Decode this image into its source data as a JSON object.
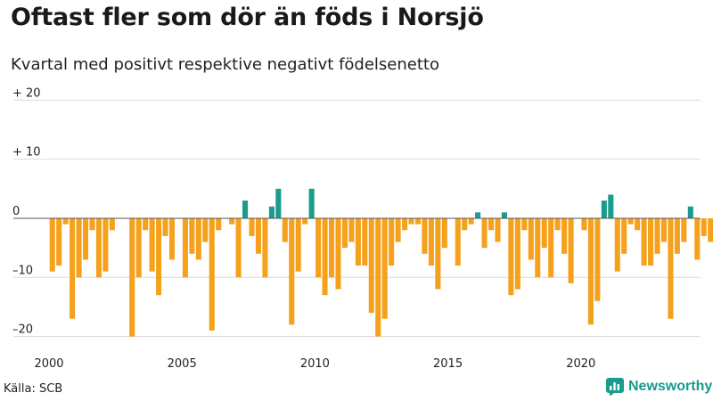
{
  "title": "Oftast fler som dör än föds i Norsjö",
  "subtitle": "Kvartal med positivt respektive negativt födelsenetto",
  "source": "Källa: SCB",
  "brand": {
    "name": "Newsworthy",
    "icon": "newsworthy-logo-icon"
  },
  "colors": {
    "positive": "#1a9b8b",
    "negative": "#f5a11c",
    "grid": "#d9d9d9",
    "zero": "#555555"
  },
  "chart_data": {
    "type": "bar",
    "title": "Oftast fler som dör än föds i Norsjö",
    "subtitle": "Kvartal med positivt respektive negativt födelsenetto",
    "xlabel": "",
    "ylabel": "",
    "ylim": [
      -21,
      20
    ],
    "xlim": [
      2000,
      2024.5
    ],
    "y_ticks": [
      20,
      10,
      0,
      -10,
      -20
    ],
    "y_tick_labels": [
      "+ 20",
      "+ 10",
      "0",
      "–10",
      "–20"
    ],
    "x_ticks": [
      2000,
      2005,
      2010,
      2015,
      2020
    ],
    "x_tick_labels": [
      "2000",
      "2005",
      "2010",
      "2015",
      "2020"
    ],
    "start_year": 2000,
    "period": "quarter",
    "values": [
      -9,
      -8,
      -1,
      -17,
      -10,
      -7,
      -2,
      -10,
      -9,
      -2,
      0,
      0,
      -20,
      -10,
      -2,
      -9,
      -13,
      -3,
      -7,
      0,
      -10,
      -6,
      -7,
      -4,
      -19,
      -2,
      0,
      -1,
      -10,
      3,
      -3,
      -6,
      -10,
      2,
      5,
      -4,
      -18,
      -9,
      -1,
      5,
      -10,
      -13,
      -10,
      -12,
      -5,
      -4,
      -8,
      -8,
      -16,
      -20,
      -17,
      -8,
      -4,
      -2,
      -1,
      -1,
      -6,
      -8,
      -12,
      -5,
      0,
      -8,
      -2,
      -1,
      1,
      -5,
      -2,
      -4,
      1,
      -13,
      -12,
      -2,
      -7,
      -10,
      -5,
      -10,
      -2,
      -6,
      -11,
      0,
      -2,
      -18,
      -14,
      3,
      4,
      -9,
      -6,
      -1,
      -2,
      -8,
      -8,
      -6,
      -4,
      -17,
      -6,
      -4,
      2,
      -7,
      -3,
      -4
    ]
  }
}
